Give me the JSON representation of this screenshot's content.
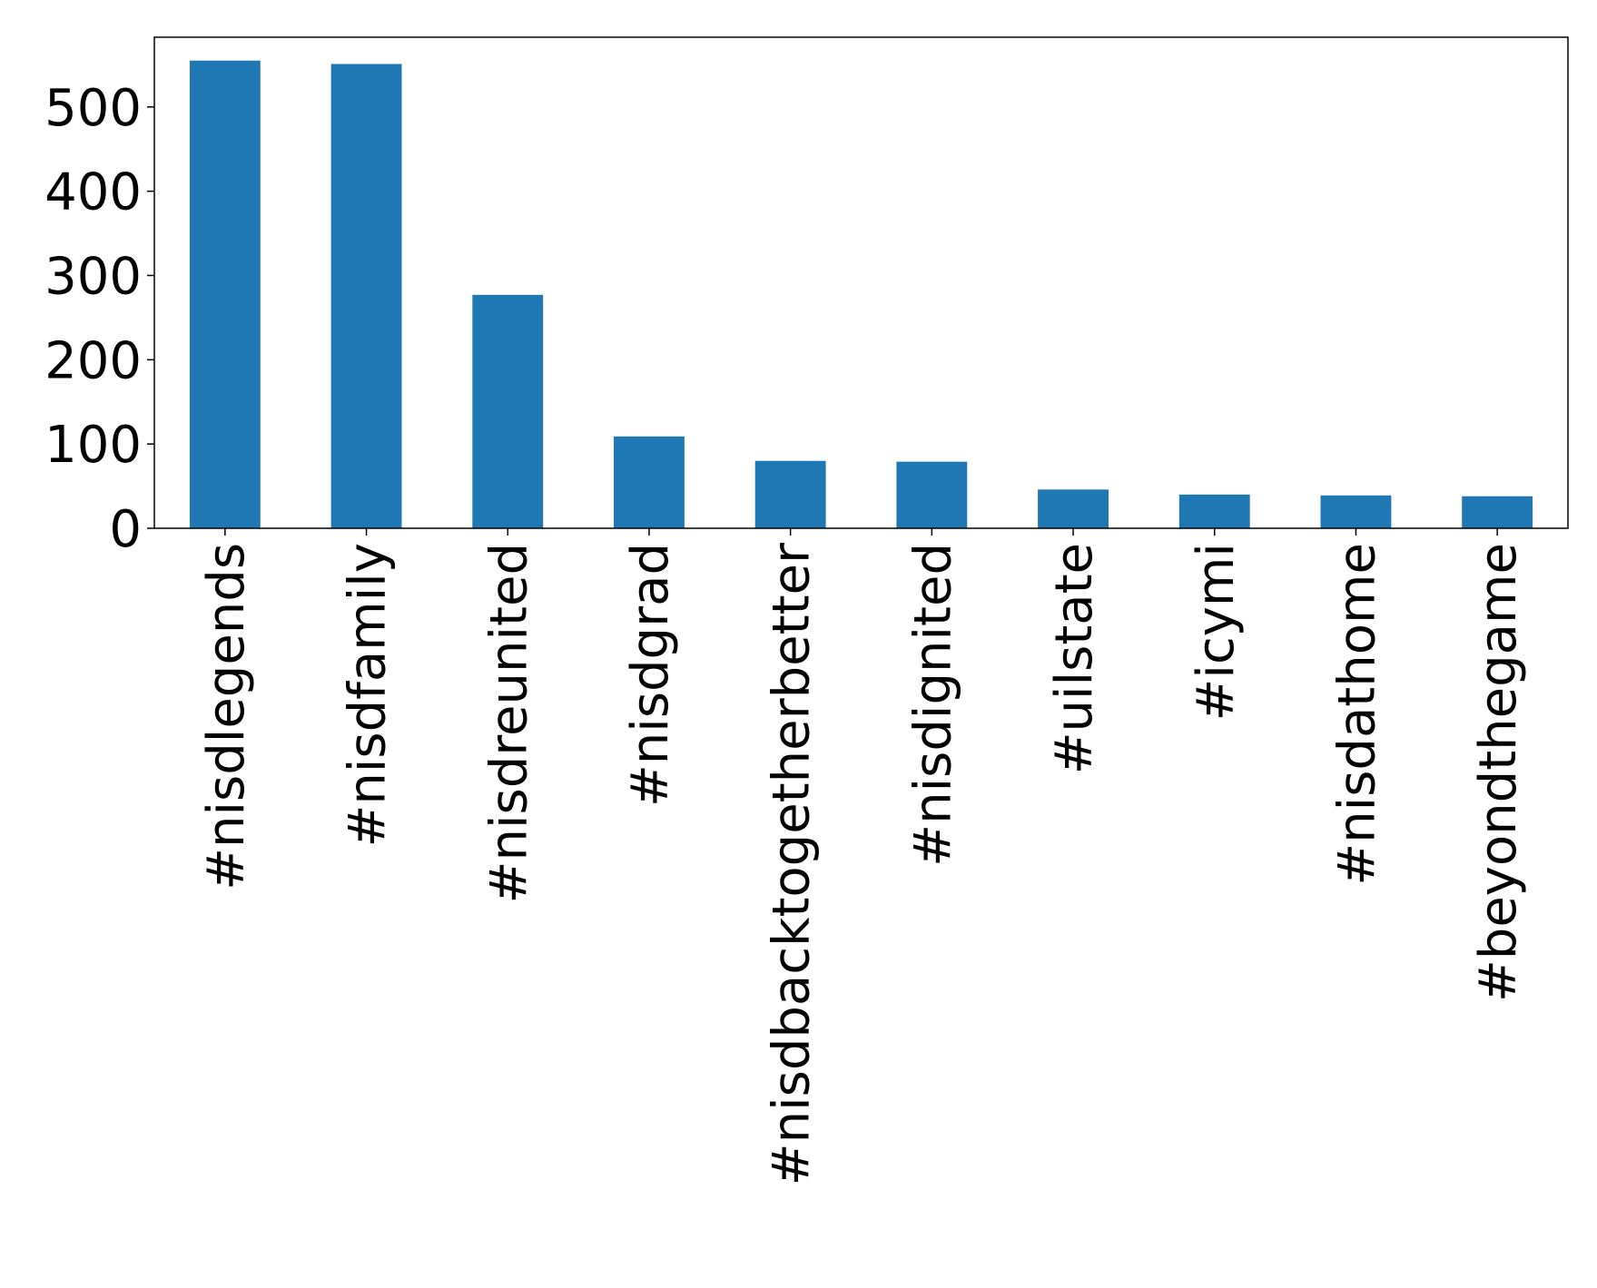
{
  "chart_data": {
    "type": "bar",
    "categories": [
      "#nisdlegends",
      "#nisdfamily",
      "#nisdreunited",
      "#nisdgrad",
      "#nisdbacktogetherbetter",
      "#nisdignited",
      "#uilstate",
      "#icymi",
      "#nisdathome",
      "#beyondthegame"
    ],
    "values": [
      555,
      551,
      277,
      109,
      80,
      79,
      46,
      40,
      39,
      38
    ],
    "color": "#1f77b4",
    "ylim": [
      0,
      582.75
    ],
    "yticks": [
      0,
      100,
      200,
      300,
      400,
      500
    ],
    "grid": false
  }
}
